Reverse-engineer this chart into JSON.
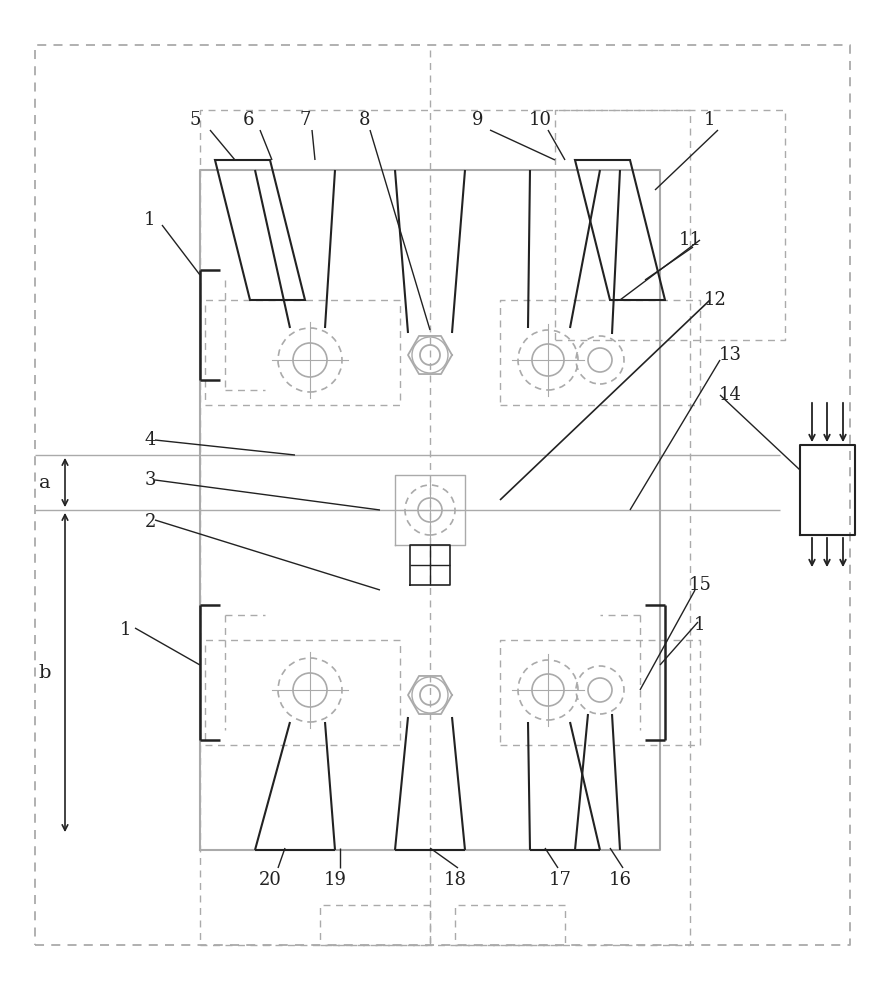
{
  "bg_color": "#ffffff",
  "lc": "#aaaaaa",
  "dc": "#222222",
  "figsize": [
    8.9,
    10.0
  ],
  "dpi": 100
}
